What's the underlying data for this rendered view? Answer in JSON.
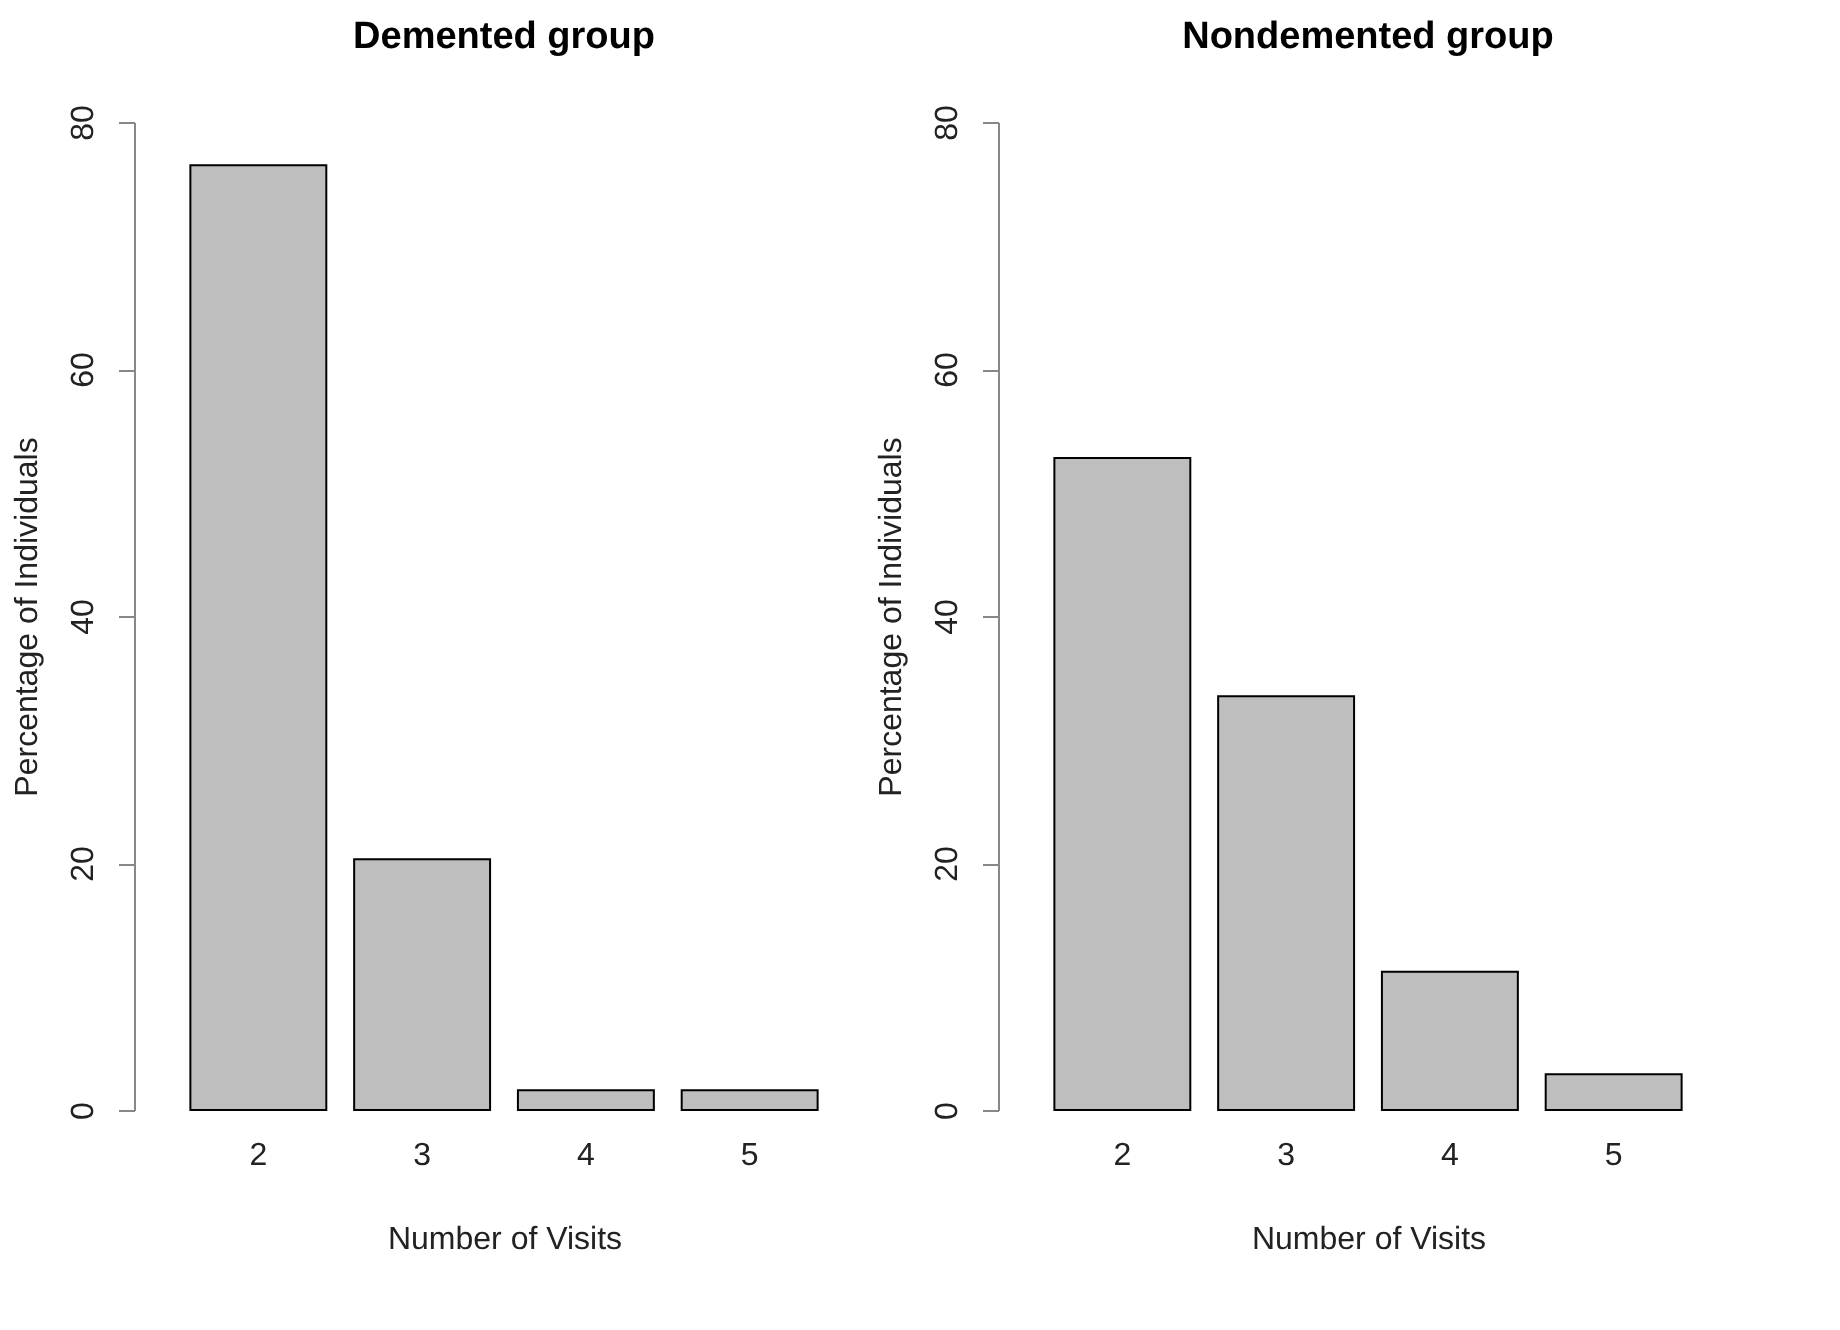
{
  "chart_data": [
    {
      "type": "bar",
      "title": "Demented group",
      "xlabel": "Number of Visits",
      "ylabel": "Percentage of Individuals",
      "categories": [
        "2",
        "3",
        "4",
        "5"
      ],
      "values": [
        76.5,
        20.3,
        1.6,
        1.6
      ],
      "color": "#bebebe",
      "ylim": [
        0,
        80
      ],
      "yticks": [
        0,
        20,
        40,
        60,
        80
      ]
    },
    {
      "type": "bar",
      "title": "Nondemented group",
      "xlabel": "Number of Visits",
      "ylabel": "Percentage of Individuals",
      "categories": [
        "2",
        "3",
        "4",
        "5"
      ],
      "values": [
        52.8,
        33.5,
        11.2,
        2.9
      ],
      "color": "#bebebe",
      "ylim": [
        0,
        80
      ],
      "yticks": [
        0,
        20,
        40,
        60,
        80
      ]
    }
  ]
}
